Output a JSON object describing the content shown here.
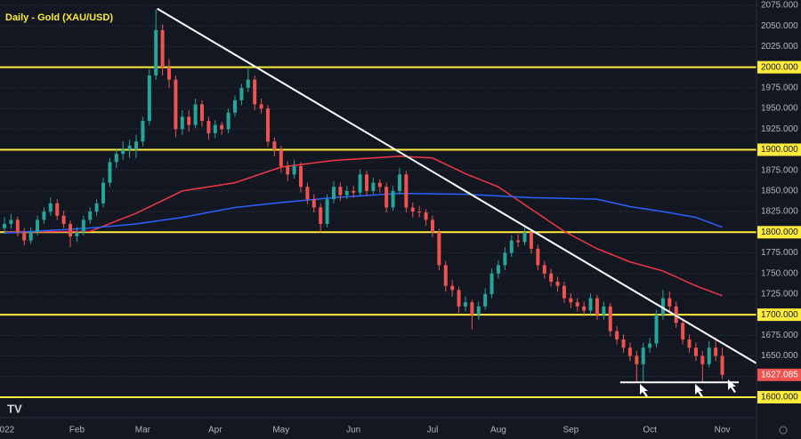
{
  "chart_data": {
    "type": "candlestick",
    "title": "Daily - Gold (XAU/USD)",
    "up_color": "#26a69a",
    "down_color": "#ef5350",
    "xlim": [
      -0.68,
      114.2
    ],
    "ylim": [
      1595,
      2080
    ],
    "xticks": [
      {
        "value": 0,
        "label": "2022"
      },
      {
        "value": 11,
        "label": "Feb"
      },
      {
        "value": 21,
        "label": "Mar"
      },
      {
        "value": 32,
        "label": "Apr"
      },
      {
        "value": 42,
        "label": "May"
      },
      {
        "value": 53,
        "label": "Jun"
      },
      {
        "value": 65,
        "label": "Jul"
      },
      {
        "value": 75,
        "label": "Aug"
      },
      {
        "value": 86,
        "label": "Sep"
      },
      {
        "value": 98,
        "label": "Oct"
      },
      {
        "value": 109,
        "label": "Nov"
      }
    ],
    "yticks": [
      {
        "value": 1600,
        "label": "1600.000"
      },
      {
        "value": 1625,
        "label": "1625.000"
      },
      {
        "value": 1650,
        "label": "1650.000"
      },
      {
        "value": 1675,
        "label": "1675.000"
      },
      {
        "value": 1700,
        "label": "1700.000"
      },
      {
        "value": 1725,
        "label": "1725.000"
      },
      {
        "value": 1750,
        "label": "1750.000"
      },
      {
        "value": 1775,
        "label": "1775.000"
      },
      {
        "value": 1800,
        "label": "1800.000"
      },
      {
        "value": 1825,
        "label": "1825.000"
      },
      {
        "value": 1850,
        "label": "1850.000"
      },
      {
        "value": 1875,
        "label": "1875.000"
      },
      {
        "value": 1900,
        "label": "1900.000"
      },
      {
        "value": 1925,
        "label": "1925.000"
      },
      {
        "value": 1950,
        "label": "1950.000"
      },
      {
        "value": 1975,
        "label": "1975.000"
      },
      {
        "value": 2000,
        "label": "2000.000"
      },
      {
        "value": 2025,
        "label": "2025.000"
      },
      {
        "value": 2050,
        "label": "2050.000"
      },
      {
        "value": 2075,
        "label": "2075.000"
      }
    ],
    "grid": true,
    "levels": {
      "color": "#ffeb3b",
      "values": [
        2000,
        1900,
        1800,
        1700,
        1600
      ]
    },
    "candles": [
      [
        1805,
        1818,
        1798,
        1810
      ],
      [
        1810,
        1822,
        1804,
        1815
      ],
      [
        1815,
        1819,
        1795,
        1800
      ],
      [
        1800,
        1805,
        1784,
        1790
      ],
      [
        1790,
        1806,
        1786,
        1800
      ],
      [
        1800,
        1820,
        1796,
        1815
      ],
      [
        1815,
        1830,
        1810,
        1825
      ],
      [
        1825,
        1842,
        1820,
        1835
      ],
      [
        1835,
        1840,
        1815,
        1820
      ],
      [
        1820,
        1826,
        1805,
        1810
      ],
      [
        1810,
        1814,
        1782,
        1795
      ],
      [
        1795,
        1806,
        1788,
        1800
      ],
      [
        1800,
        1820,
        1796,
        1815
      ],
      [
        1815,
        1830,
        1810,
        1825
      ],
      [
        1825,
        1840,
        1820,
        1835
      ],
      [
        1835,
        1866,
        1830,
        1860
      ],
      [
        1860,
        1890,
        1855,
        1885
      ],
      [
        1885,
        1902,
        1878,
        1895
      ],
      [
        1895,
        1910,
        1888,
        1900
      ],
      [
        1900,
        1912,
        1890,
        1905
      ],
      [
        1900,
        1918,
        1890,
        1910
      ],
      [
        1910,
        1940,
        1904,
        1935
      ],
      [
        1935,
        1998,
        1930,
        1990
      ],
      [
        1990,
        2070,
        1985,
        2045
      ],
      [
        2045,
        2052,
        1990,
        2000
      ],
      [
        2000,
        2010,
        1975,
        1985
      ],
      [
        1985,
        1990,
        1915,
        1925
      ],
      [
        1925,
        1948,
        1918,
        1940
      ],
      [
        1940,
        1948,
        1922,
        1930
      ],
      [
        1930,
        1962,
        1926,
        1955
      ],
      [
        1955,
        1960,
        1928,
        1935
      ],
      [
        1935,
        1940,
        1912,
        1920
      ],
      [
        1920,
        1936,
        1914,
        1930
      ],
      [
        1930,
        1934,
        1918,
        1925
      ],
      [
        1925,
        1950,
        1920,
        1945
      ],
      [
        1945,
        1966,
        1940,
        1960
      ],
      [
        1960,
        1980,
        1954,
        1975
      ],
      [
        1975,
        2000,
        1970,
        1985
      ],
      [
        1985,
        1990,
        1948,
        1955
      ],
      [
        1955,
        1962,
        1944,
        1950
      ],
      [
        1950,
        1954,
        1904,
        1910
      ],
      [
        1910,
        1915,
        1892,
        1900
      ],
      [
        1900,
        1905,
        1872,
        1880
      ],
      [
        1880,
        1886,
        1862,
        1870
      ],
      [
        1870,
        1888,
        1865,
        1880
      ],
      [
        1880,
        1885,
        1848,
        1855
      ],
      [
        1855,
        1860,
        1834,
        1840
      ],
      [
        1840,
        1846,
        1824,
        1830
      ],
      [
        1830,
        1835,
        1800,
        1810
      ],
      [
        1810,
        1846,
        1806,
        1840
      ],
      [
        1840,
        1862,
        1835,
        1855
      ],
      [
        1855,
        1860,
        1838,
        1845
      ],
      [
        1845,
        1856,
        1840,
        1850
      ],
      [
        1850,
        1856,
        1842,
        1848
      ],
      [
        1848,
        1876,
        1844,
        1870
      ],
      [
        1870,
        1874,
        1844,
        1850
      ],
      [
        1850,
        1866,
        1846,
        1860
      ],
      [
        1860,
        1864,
        1848,
        1855
      ],
      [
        1855,
        1860,
        1824,
        1830
      ],
      [
        1830,
        1856,
        1826,
        1850
      ],
      [
        1850,
        1878,
        1846,
        1870
      ],
      [
        1870,
        1874,
        1824,
        1830
      ],
      [
        1830,
        1836,
        1818,
        1825
      ],
      [
        1825,
        1832,
        1818,
        1824
      ],
      [
        1824,
        1828,
        1808,
        1815
      ],
      [
        1815,
        1820,
        1794,
        1800
      ],
      [
        1800,
        1804,
        1754,
        1760
      ],
      [
        1760,
        1765,
        1728,
        1735
      ],
      [
        1735,
        1742,
        1722,
        1730
      ],
      [
        1730,
        1734,
        1702,
        1710
      ],
      [
        1710,
        1722,
        1704,
        1715
      ],
      [
        1715,
        1718,
        1682,
        1700
      ],
      [
        1700,
        1716,
        1694,
        1710
      ],
      [
        1710,
        1732,
        1706,
        1725
      ],
      [
        1725,
        1756,
        1720,
        1750
      ],
      [
        1750,
        1766,
        1744,
        1760
      ],
      [
        1760,
        1782,
        1754,
        1775
      ],
      [
        1775,
        1796,
        1770,
        1790
      ],
      [
        1790,
        1798,
        1782,
        1788
      ],
      [
        1788,
        1806,
        1784,
        1800
      ],
      [
        1800,
        1804,
        1774,
        1780
      ],
      [
        1780,
        1785,
        1754,
        1760
      ],
      [
        1760,
        1765,
        1744,
        1750
      ],
      [
        1750,
        1756,
        1734,
        1740
      ],
      [
        1740,
        1746,
        1728,
        1735
      ],
      [
        1735,
        1740,
        1714,
        1720
      ],
      [
        1720,
        1726,
        1708,
        1715
      ],
      [
        1715,
        1720,
        1704,
        1710
      ],
      [
        1710,
        1716,
        1698,
        1705
      ],
      [
        1705,
        1726,
        1700,
        1720
      ],
      [
        1720,
        1724,
        1694,
        1700
      ],
      [
        1700,
        1716,
        1694,
        1710
      ],
      [
        1710,
        1714,
        1674,
        1680
      ],
      [
        1680,
        1686,
        1664,
        1670
      ],
      [
        1670,
        1676,
        1654,
        1660
      ],
      [
        1660,
        1666,
        1644,
        1650
      ],
      [
        1650,
        1656,
        1618,
        1640
      ],
      [
        1640,
        1666,
        1618,
        1660
      ],
      [
        1660,
        1672,
        1654,
        1665
      ],
      [
        1665,
        1706,
        1660,
        1700
      ],
      [
        1700,
        1730,
        1694,
        1720
      ],
      [
        1720,
        1728,
        1704,
        1710
      ],
      [
        1710,
        1716,
        1684,
        1690
      ],
      [
        1690,
        1694,
        1664,
        1670
      ],
      [
        1670,
        1676,
        1654,
        1660
      ],
      [
        1660,
        1666,
        1644,
        1650
      ],
      [
        1650,
        1656,
        1618,
        1640
      ],
      [
        1640,
        1668,
        1636,
        1660
      ],
      [
        1660,
        1672,
        1644,
        1650
      ],
      [
        1650,
        1660,
        1622,
        1627.085
      ]
    ],
    "moving_averages": [
      {
        "color": "#f23645",
        "x": [
          0,
          13,
          20,
          27,
          35,
          42,
          50,
          60,
          65,
          70,
          75,
          80,
          85,
          90,
          95,
          100,
          105,
          109
        ],
        "values": [
          1800,
          1801,
          1823,
          1850,
          1860,
          1879,
          1887,
          1892,
          1890,
          1871,
          1855,
          1828,
          1801,
          1780,
          1764,
          1753,
          1735,
          1723
        ]
      },
      {
        "color": "#2962ff",
        "x": [
          0,
          13,
          20,
          27,
          35,
          42,
          50,
          60,
          70,
          80,
          90,
          95,
          100,
          105,
          109
        ],
        "values": [
          1799,
          1805,
          1810,
          1818,
          1830,
          1836,
          1842,
          1847,
          1846,
          1842,
          1840,
          1831,
          1825,
          1818,
          1806
        ]
      }
    ],
    "trendline": {
      "color": "#ffffff",
      "x": [
        23.2,
        114.2
      ],
      "values": [
        2071,
        1641
      ]
    },
    "support": {
      "color": "#ffffff",
      "x": [
        93.5,
        111.5
      ],
      "values": [
        1618,
        1618
      ]
    }
  }
}
